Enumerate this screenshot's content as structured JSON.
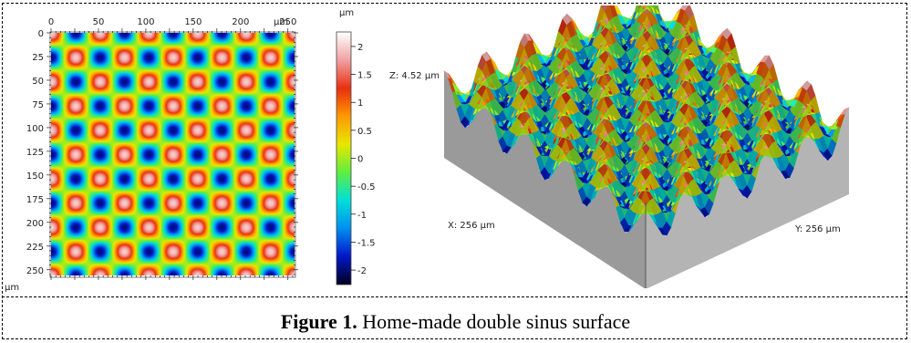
{
  "figure": {
    "caption_label": "Figure 1.",
    "caption_text": " Home-made double sinus surface"
  },
  "map2d": {
    "x_ticks": [
      "0",
      "50",
      "100",
      "150",
      "200",
      "250"
    ],
    "x_unit": "µm",
    "y_ticks": [
      "0",
      "25",
      "50",
      "75",
      "100",
      "125",
      "150",
      "175",
      "200",
      "225",
      "250"
    ],
    "y_unit": "µm",
    "extent_um": 256,
    "period_um": 51.2
  },
  "colorbar": {
    "unit": "µm",
    "ticks": [
      "2",
      "1.5",
      "1",
      "0.5",
      "0",
      "-0.5",
      "-1",
      "-1.5",
      "-2"
    ],
    "range": [
      -2.26,
      2.26
    ],
    "colors": [
      "#000022",
      "#0018c8",
      "#0090f0",
      "#00e0d8",
      "#60ee40",
      "#e8e800",
      "#ff9a00",
      "#e83010",
      "#f0a0a0",
      "#ffffff"
    ]
  },
  "surface3d": {
    "z_label": "Z: 4.52 µm",
    "x_label": "X: 256 µm",
    "y_label": "Y: 256 µm",
    "wall_color": "#9a9a9a"
  }
}
